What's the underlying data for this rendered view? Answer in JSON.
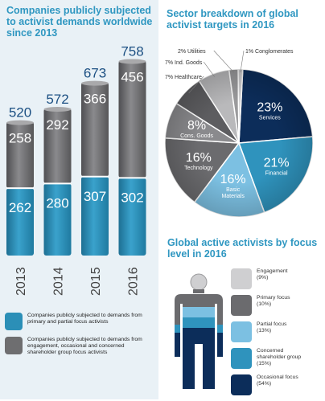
{
  "left": {
    "title": "Companies publicly subjected to activist demands worldwide since 2013",
    "legend": [
      {
        "label": "Companies publicly subjected to demands from primary and partial focus activists",
        "color": "#2b8fb7"
      },
      {
        "label": "Companies publicly subjected to demands from engagement, occasional and concerned shareholder group focus activists",
        "color": "#6e6e70"
      }
    ]
  },
  "pie": {
    "title": "Sector breakdown of global activist targets in 2016"
  },
  "activists": {
    "title": "Global active activists by focus level in 2016"
  },
  "chart_data": [
    {
      "type": "bar",
      "categories": [
        "2013",
        "2014",
        "2015",
        "2016"
      ],
      "series": [
        {
          "values": [
            262,
            280,
            307,
            302
          ],
          "color": "#2b8fb7"
        },
        {
          "values": [
            258,
            292,
            366,
            456
          ],
          "color": "#6e6e70"
        }
      ],
      "totals": [
        520,
        572,
        673,
        758
      ]
    },
    {
      "type": "pie",
      "slices": [
        {
          "pct": "23%",
          "value": 23,
          "name": "Services",
          "color": "#0c2d5a"
        },
        {
          "pct": "21%",
          "value": 21,
          "name": "Financial",
          "color": "#2f93bd"
        },
        {
          "pct": "16%",
          "value": 16,
          "name": "Basic Materials",
          "name_lines": [
            "Basic",
            "Materials"
          ],
          "color": "#7cc0e2"
        },
        {
          "pct": "16%",
          "value": 16,
          "name": "Technology",
          "color": "#6b6b6e"
        },
        {
          "pct": "8%",
          "value": 8,
          "name": "Cons. Goods",
          "color": "#8a8a8d"
        },
        {
          "value": 7,
          "name": "7% Healthcare",
          "color": "#5d5d60"
        },
        {
          "value": 7,
          "name": "7% Ind. Goods",
          "color": "#b9b9bb"
        },
        {
          "value": 2,
          "name": "2% Utilities",
          "color": "#9a9a9c"
        },
        {
          "value": 1,
          "name": "1% Conglomerates",
          "color": "#cfcfd1"
        }
      ]
    },
    {
      "type": "table",
      "items": [
        {
          "label": "Engagement",
          "pct": "(9%)",
          "value": 9,
          "color": "#cfcfd1"
        },
        {
          "label": "Primary focus",
          "pct": "(10%)",
          "value": 10,
          "color": "#6b6b6e"
        },
        {
          "label": "Partial focus",
          "pct": "(13%)",
          "value": 13,
          "color": "#7cc0e2"
        },
        {
          "label": "Concerned shareholder group",
          "label_lines": [
            "Concerned",
            "shareholder group"
          ],
          "pct": "(15%)",
          "value": 15,
          "color": "#2f93bd"
        },
        {
          "label": "Occasional focus",
          "pct": "(54%)",
          "value": 54,
          "color": "#0c2d5a"
        }
      ]
    }
  ]
}
